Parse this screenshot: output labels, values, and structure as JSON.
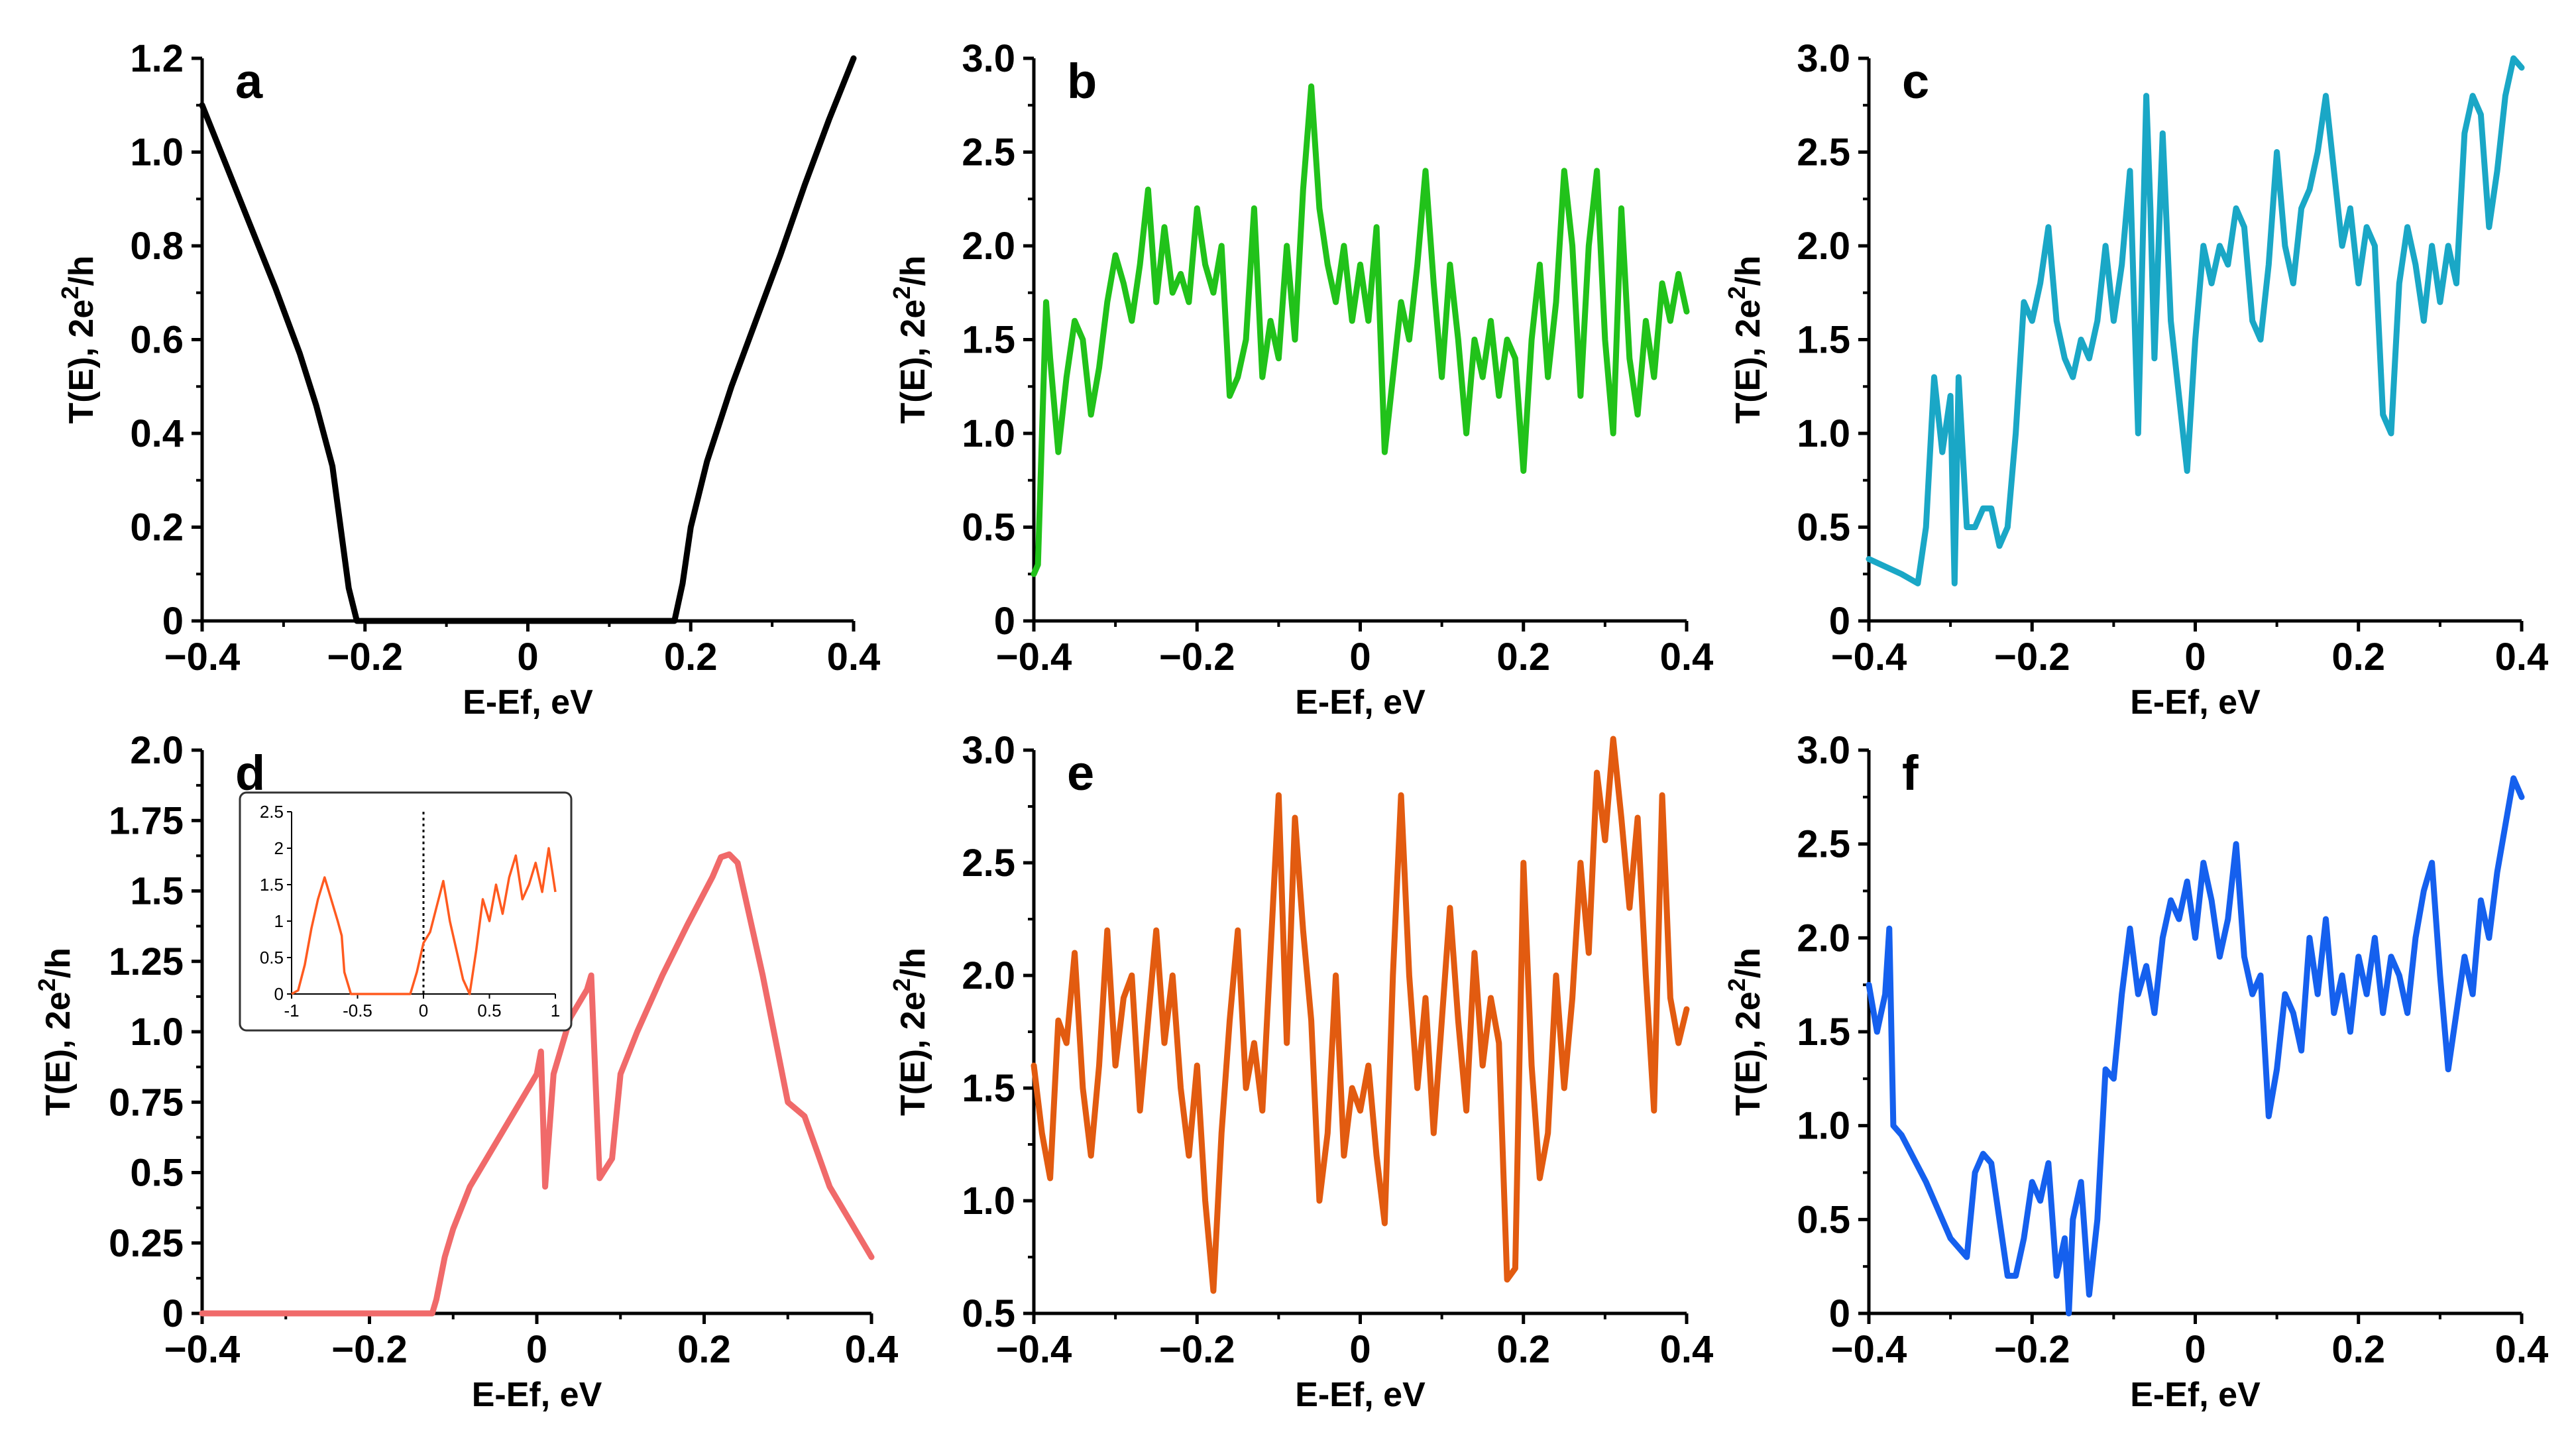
{
  "figure": {
    "description_free": true,
    "panels_count": 6
  },
  "chart_data": [
    {
      "id": "a",
      "type": "line",
      "panel_label": "a",
      "color": "#000000",
      "xlabel": "E-Ef, eV",
      "ylabel": "T(E), 2e²/h",
      "ylabel_parts": {
        "main": "T(E), 2e",
        "sup": "2",
        "tail": "/h"
      },
      "xlim": [
        -0.4,
        0.4
      ],
      "ylim": [
        0,
        1.2
      ],
      "xticks": [
        -0.4,
        -0.2,
        0,
        0.2,
        0.4
      ],
      "xtick_labels": [
        "−0.4",
        "−0.2",
        "0",
        "0.2",
        "0.4"
      ],
      "yticks": [
        0,
        0.2,
        0.4,
        0.6,
        0.8,
        1.0,
        1.2
      ],
      "ytick_labels": [
        "0",
        "0.2",
        "0.4",
        "0.6",
        "0.8",
        "1.0",
        "1.2"
      ],
      "x": [
        -0.4,
        -0.37,
        -0.34,
        -0.31,
        -0.28,
        -0.26,
        -0.24,
        -0.23,
        -0.22,
        -0.21,
        0.0,
        0.18,
        0.19,
        0.2,
        0.22,
        0.25,
        0.28,
        0.31,
        0.34,
        0.37,
        0.4
      ],
      "y": [
        1.1,
        0.97,
        0.84,
        0.71,
        0.57,
        0.46,
        0.33,
        0.2,
        0.07,
        0,
        0,
        0,
        0.08,
        0.2,
        0.34,
        0.5,
        0.64,
        0.78,
        0.93,
        1.07,
        1.2
      ]
    },
    {
      "id": "b",
      "type": "line",
      "panel_label": "b",
      "color": "#21c21a",
      "xlabel": "E-Ef, eV",
      "ylabel": "T(E), 2e²/h",
      "ylabel_parts": {
        "main": "T(E), 2e",
        "sup": "2",
        "tail": "/h"
      },
      "xlim": [
        -0.4,
        0.4
      ],
      "ylim": [
        0,
        3.0
      ],
      "xticks": [
        -0.4,
        -0.2,
        0,
        0.2,
        0.4
      ],
      "xtick_labels": [
        "−0.4",
        "−0.2",
        "0",
        "0.2",
        "0.4"
      ],
      "yticks": [
        0,
        0.5,
        1.0,
        1.5,
        2.0,
        2.5,
        3.0
      ],
      "ytick_labels": [
        "0",
        "0.5",
        "1.0",
        "1.5",
        "2.0",
        "2.5",
        "3.0"
      ],
      "x": [
        -0.4,
        -0.395,
        -0.39,
        -0.385,
        -0.38,
        -0.37,
        -0.36,
        -0.35,
        -0.34,
        -0.33,
        -0.32,
        -0.31,
        -0.3,
        -0.29,
        -0.28,
        -0.27,
        -0.26,
        -0.25,
        -0.24,
        -0.23,
        -0.22,
        -0.21,
        -0.2,
        -0.19,
        -0.18,
        -0.17,
        -0.16,
        -0.15,
        -0.14,
        -0.13,
        -0.12,
        -0.11,
        -0.1,
        -0.09,
        -0.08,
        -0.07,
        -0.06,
        -0.05,
        -0.04,
        -0.03,
        -0.02,
        -0.01,
        0.0,
        0.01,
        0.02,
        0.03,
        0.04,
        0.05,
        0.06,
        0.07,
        0.08,
        0.09,
        0.1,
        0.11,
        0.12,
        0.13,
        0.14,
        0.15,
        0.16,
        0.17,
        0.18,
        0.19,
        0.2,
        0.21,
        0.22,
        0.23,
        0.24,
        0.25,
        0.26,
        0.27,
        0.28,
        0.29,
        0.3,
        0.31,
        0.32,
        0.33,
        0.34,
        0.35,
        0.36,
        0.37,
        0.38,
        0.39,
        0.4
      ],
      "y": [
        0.25,
        0.3,
        1.0,
        1.7,
        1.4,
        0.9,
        1.3,
        1.6,
        1.5,
        1.1,
        1.35,
        1.7,
        1.95,
        1.8,
        1.6,
        1.9,
        2.3,
        1.7,
        2.1,
        1.75,
        1.85,
        1.7,
        2.2,
        1.9,
        1.75,
        2.0,
        1.2,
        1.3,
        1.5,
        2.2,
        1.3,
        1.6,
        1.4,
        2.0,
        1.5,
        2.3,
        2.85,
        2.2,
        1.9,
        1.7,
        2.0,
        1.6,
        1.9,
        1.6,
        2.1,
        0.9,
        1.3,
        1.7,
        1.5,
        1.9,
        2.4,
        1.8,
        1.3,
        1.9,
        1.5,
        1.0,
        1.5,
        1.3,
        1.6,
        1.2,
        1.5,
        1.4,
        0.8,
        1.5,
        1.9,
        1.3,
        1.7,
        2.4,
        2.0,
        1.2,
        2.0,
        2.4,
        1.5,
        1.0,
        2.2,
        1.4,
        1.1,
        1.6,
        1.3,
        1.8,
        1.6,
        1.85,
        1.65
      ]
    },
    {
      "id": "c",
      "type": "line",
      "panel_label": "c",
      "color": "#1aa7c6",
      "xlabel": "E-Ef, eV",
      "ylabel": "T(E), 2e²/h",
      "ylabel_parts": {
        "main": "T(E), 2e",
        "sup": "2",
        "tail": "/h"
      },
      "xlim": [
        -0.4,
        0.4
      ],
      "ylim": [
        0,
        3.0
      ],
      "xticks": [
        -0.4,
        -0.2,
        0,
        0.2,
        0.4
      ],
      "xtick_labels": [
        "−0.4",
        "−0.2",
        "0",
        "0.2",
        "0.4"
      ],
      "yticks": [
        0,
        0.5,
        1.0,
        1.5,
        2.0,
        2.5,
        3.0
      ],
      "ytick_labels": [
        "0",
        "0.5",
        "1.0",
        "1.5",
        "2.0",
        "2.5",
        "3.0"
      ],
      "x": [
        -0.4,
        -0.36,
        -0.34,
        -0.33,
        -0.32,
        -0.31,
        -0.3,
        -0.295,
        -0.29,
        -0.285,
        -0.28,
        -0.27,
        -0.26,
        -0.25,
        -0.24,
        -0.23,
        -0.22,
        -0.21,
        -0.2,
        -0.19,
        -0.18,
        -0.17,
        -0.16,
        -0.15,
        -0.14,
        -0.13,
        -0.12,
        -0.11,
        -0.1,
        -0.09,
        -0.08,
        -0.07,
        -0.06,
        -0.055,
        -0.05,
        -0.04,
        -0.03,
        -0.02,
        -0.01,
        0.0,
        0.01,
        0.02,
        0.03,
        0.04,
        0.05,
        0.06,
        0.07,
        0.08,
        0.09,
        0.1,
        0.11,
        0.12,
        0.13,
        0.14,
        0.15,
        0.16,
        0.17,
        0.18,
        0.19,
        0.2,
        0.21,
        0.22,
        0.23,
        0.24,
        0.25,
        0.26,
        0.27,
        0.28,
        0.29,
        0.3,
        0.31,
        0.32,
        0.33,
        0.34,
        0.35,
        0.36,
        0.37,
        0.38,
        0.39,
        0.4
      ],
      "y": [
        0.33,
        0.25,
        0.2,
        0.5,
        1.3,
        0.9,
        1.2,
        0.2,
        1.3,
        0.9,
        0.5,
        0.5,
        0.6,
        0.6,
        0.4,
        0.5,
        1.0,
        1.7,
        1.6,
        1.8,
        2.1,
        1.6,
        1.4,
        1.3,
        1.5,
        1.4,
        1.6,
        2.0,
        1.6,
        1.9,
        2.4,
        1.0,
        2.8,
        2.2,
        1.4,
        2.6,
        1.6,
        1.2,
        0.8,
        1.5,
        2.0,
        1.8,
        2.0,
        1.9,
        2.2,
        2.1,
        1.6,
        1.5,
        1.9,
        2.5,
        2.0,
        1.8,
        2.2,
        2.3,
        2.5,
        2.8,
        2.4,
        2.0,
        2.2,
        1.8,
        2.1,
        2.0,
        1.1,
        1.0,
        1.8,
        2.1,
        1.9,
        1.6,
        2.0,
        1.7,
        2.0,
        1.8,
        2.6,
        2.8,
        2.7,
        2.1,
        2.4,
        2.8,
        3.0,
        2.95
      ]
    },
    {
      "id": "d",
      "type": "line",
      "panel_label": "d",
      "color": "#f06a6a",
      "xlabel": "E-Ef, eV",
      "ylabel": "T(E), 2e²/h",
      "ylabel_parts": {
        "main": "T(E), 2e",
        "sup": "2",
        "tail": "/h"
      },
      "xlim": [
        -0.4,
        0.4
      ],
      "ylim": [
        0,
        2.0
      ],
      "xticks": [
        -0.4,
        -0.2,
        0,
        0.2,
        0.4
      ],
      "xtick_labels": [
        "−0.4",
        "−0.2",
        "0",
        "0.2",
        "0.4"
      ],
      "yticks": [
        0,
        0.25,
        0.5,
        0.75,
        1.0,
        1.25,
        1.5,
        1.75,
        2.0
      ],
      "ytick_labels": [
        "0",
        "0.25",
        "0.5",
        "0.75",
        "1.0",
        "1.25",
        "1.5",
        "1.75",
        "2.0"
      ],
      "x": [
        -0.4,
        -0.2,
        -0.125,
        -0.12,
        -0.11,
        -0.1,
        -0.08,
        -0.06,
        -0.04,
        -0.02,
        0.0,
        0.005,
        0.01,
        0.02,
        0.04,
        0.06,
        0.065,
        0.075,
        0.09,
        0.1,
        0.12,
        0.15,
        0.18,
        0.21,
        0.22,
        0.23,
        0.24,
        0.27,
        0.3,
        0.32,
        0.35,
        0.38,
        0.4
      ],
      "y": [
        0,
        0,
        0,
        0.05,
        0.2,
        0.3,
        0.45,
        0.55,
        0.65,
        0.75,
        0.85,
        0.93,
        0.45,
        0.85,
        1.05,
        1.15,
        1.2,
        0.48,
        0.55,
        0.85,
        1.0,
        1.2,
        1.38,
        1.55,
        1.62,
        1.63,
        1.6,
        1.2,
        0.75,
        0.7,
        0.45,
        0.3,
        0.2
      ],
      "inset": {
        "type": "line",
        "color": "#ff5a1f",
        "xlim": [
          -1,
          1
        ],
        "ylim": [
          0,
          2.5
        ],
        "xticks": [
          -1,
          -0.5,
          0,
          0.5,
          1
        ],
        "xtick_labels": [
          "-1",
          "-0.5",
          "0",
          "0.5",
          "1"
        ],
        "yticks": [
          0,
          0.5,
          1,
          1.5,
          2,
          2.5
        ],
        "ytick_labels": [
          "0",
          "0.5",
          "1",
          "1.5",
          "2",
          "2.5"
        ],
        "vline_x": 0,
        "x": [
          -1,
          -0.95,
          -0.9,
          -0.85,
          -0.8,
          -0.75,
          -0.7,
          -0.65,
          -0.62,
          -0.6,
          -0.55,
          -0.4,
          -0.3,
          -0.2,
          -0.1,
          -0.05,
          0.0,
          0.05,
          0.1,
          0.15,
          0.2,
          0.25,
          0.3,
          0.35,
          0.4,
          0.45,
          0.5,
          0.55,
          0.6,
          0.65,
          0.7,
          0.75,
          0.8,
          0.85,
          0.9,
          0.95,
          1.0
        ],
        "y": [
          0,
          0.05,
          0.4,
          0.9,
          1.3,
          1.6,
          1.3,
          1.0,
          0.8,
          0.3,
          0,
          0,
          0,
          0,
          0,
          0.3,
          0.7,
          0.85,
          1.2,
          1.55,
          1.0,
          0.6,
          0.2,
          0.0,
          0.6,
          1.3,
          1.0,
          1.5,
          1.1,
          1.6,
          1.9,
          1.3,
          1.5,
          1.8,
          1.4,
          2.0,
          1.4
        ]
      }
    },
    {
      "id": "e",
      "type": "line",
      "panel_label": "e",
      "color": "#e25b10",
      "xlabel": "E-Ef, eV",
      "ylabel": "T(E), 2e²/h",
      "ylabel_parts": {
        "main": "T(E), 2e",
        "sup": "2",
        "tail": "/h"
      },
      "xlim": [
        -0.4,
        0.4
      ],
      "ylim": [
        0.5,
        3.0
      ],
      "xticks": [
        -0.4,
        -0.2,
        0,
        0.2,
        0.4
      ],
      "xtick_labels": [
        "−0.4",
        "−0.2",
        "0",
        "0.2",
        "0.4"
      ],
      "yticks": [
        0.5,
        1.0,
        1.5,
        2.0,
        2.5,
        3.0
      ],
      "ytick_labels": [
        "0.5",
        "1.0",
        "1.5",
        "2.0",
        "2.5",
        "3.0"
      ],
      "x": [
        -0.4,
        -0.39,
        -0.38,
        -0.37,
        -0.36,
        -0.35,
        -0.34,
        -0.33,
        -0.32,
        -0.31,
        -0.3,
        -0.29,
        -0.28,
        -0.27,
        -0.26,
        -0.25,
        -0.24,
        -0.23,
        -0.22,
        -0.21,
        -0.2,
        -0.19,
        -0.18,
        -0.17,
        -0.16,
        -0.15,
        -0.14,
        -0.13,
        -0.12,
        -0.11,
        -0.1,
        -0.09,
        -0.08,
        -0.07,
        -0.06,
        -0.05,
        -0.04,
        -0.03,
        -0.02,
        -0.01,
        0.0,
        0.01,
        0.02,
        0.03,
        0.04,
        0.05,
        0.06,
        0.07,
        0.08,
        0.09,
        0.1,
        0.11,
        0.12,
        0.13,
        0.14,
        0.15,
        0.16,
        0.17,
        0.18,
        0.19,
        0.2,
        0.21,
        0.22,
        0.23,
        0.24,
        0.25,
        0.26,
        0.27,
        0.28,
        0.29,
        0.3,
        0.31,
        0.32,
        0.33,
        0.34,
        0.35,
        0.36,
        0.37,
        0.38,
        0.39,
        0.4
      ],
      "y": [
        1.6,
        1.3,
        1.1,
        1.8,
        1.7,
        2.1,
        1.5,
        1.2,
        1.6,
        2.2,
        1.6,
        1.9,
        2.0,
        1.4,
        1.8,
        2.2,
        1.7,
        2.0,
        1.5,
        1.2,
        1.6,
        1.0,
        0.6,
        1.3,
        1.8,
        2.2,
        1.5,
        1.7,
        1.4,
        2.1,
        2.8,
        1.7,
        2.7,
        2.2,
        1.8,
        1.0,
        1.3,
        2.0,
        1.2,
        1.5,
        1.4,
        1.6,
        1.2,
        0.9,
        2.0,
        2.8,
        2.0,
        1.5,
        1.9,
        1.3,
        1.8,
        2.3,
        1.8,
        1.4,
        2.1,
        1.6,
        1.9,
        1.7,
        0.65,
        0.7,
        2.5,
        1.6,
        1.1,
        1.3,
        2.0,
        1.5,
        1.9,
        2.5,
        2.1,
        2.9,
        2.6,
        3.05,
        2.7,
        2.3,
        2.7,
        2.0,
        1.4,
        2.8,
        1.9,
        1.7,
        1.85
      ]
    },
    {
      "id": "f",
      "type": "line",
      "panel_label": "f",
      "color": "#1560ee",
      "xlabel": "E-Ef, eV",
      "ylabel": "T(E), 2e²/h",
      "ylabel_parts": {
        "main": "T(E), 2e",
        "sup": "2",
        "tail": "/h"
      },
      "xlim": [
        -0.4,
        0.4
      ],
      "ylim": [
        0,
        3.0
      ],
      "xticks": [
        -0.4,
        -0.2,
        0,
        0.2,
        0.4
      ],
      "xtick_labels": [
        "−0.4",
        "−0.2",
        "0",
        "0.2",
        "0.4"
      ],
      "yticks": [
        0,
        0.5,
        1.0,
        1.5,
        2.0,
        2.5,
        3.0
      ],
      "ytick_labels": [
        "0",
        "0.5",
        "1.0",
        "1.5",
        "2.0",
        "2.5",
        "3.0"
      ],
      "x": [
        -0.4,
        -0.39,
        -0.38,
        -0.375,
        -0.37,
        -0.36,
        -0.33,
        -0.3,
        -0.28,
        -0.27,
        -0.26,
        -0.25,
        -0.24,
        -0.23,
        -0.22,
        -0.21,
        -0.2,
        -0.19,
        -0.18,
        -0.17,
        -0.16,
        -0.155,
        -0.15,
        -0.14,
        -0.13,
        -0.12,
        -0.11,
        -0.1,
        -0.09,
        -0.08,
        -0.07,
        -0.06,
        -0.05,
        -0.04,
        -0.03,
        -0.02,
        -0.01,
        0.0,
        0.01,
        0.02,
        0.03,
        0.04,
        0.05,
        0.06,
        0.07,
        0.08,
        0.09,
        0.1,
        0.11,
        0.12,
        0.13,
        0.14,
        0.15,
        0.16,
        0.17,
        0.18,
        0.19,
        0.2,
        0.21,
        0.22,
        0.23,
        0.24,
        0.25,
        0.26,
        0.27,
        0.28,
        0.29,
        0.3,
        0.31,
        0.32,
        0.33,
        0.34,
        0.35,
        0.36,
        0.37,
        0.38,
        0.39,
        0.4
      ],
      "y": [
        1.75,
        1.5,
        1.7,
        2.05,
        1.0,
        0.95,
        0.7,
        0.4,
        0.3,
        0.75,
        0.85,
        0.8,
        0.5,
        0.2,
        0.2,
        0.4,
        0.7,
        0.6,
        0.8,
        0.2,
        0.4,
        0.0,
        0.5,
        0.7,
        0.1,
        0.5,
        1.3,
        1.25,
        1.7,
        2.05,
        1.7,
        1.85,
        1.6,
        2.0,
        2.2,
        2.1,
        2.3,
        2.0,
        2.4,
        2.2,
        1.9,
        2.1,
        2.5,
        1.9,
        1.7,
        1.8,
        1.05,
        1.3,
        1.7,
        1.6,
        1.4,
        2.0,
        1.7,
        2.1,
        1.6,
        1.8,
        1.5,
        1.9,
        1.7,
        2.0,
        1.6,
        1.9,
        1.8,
        1.6,
        2.0,
        2.25,
        2.4,
        1.8,
        1.3,
        1.6,
        1.9,
        1.7,
        2.2,
        2.0,
        2.35,
        2.6,
        2.85,
        2.75
      ]
    }
  ]
}
